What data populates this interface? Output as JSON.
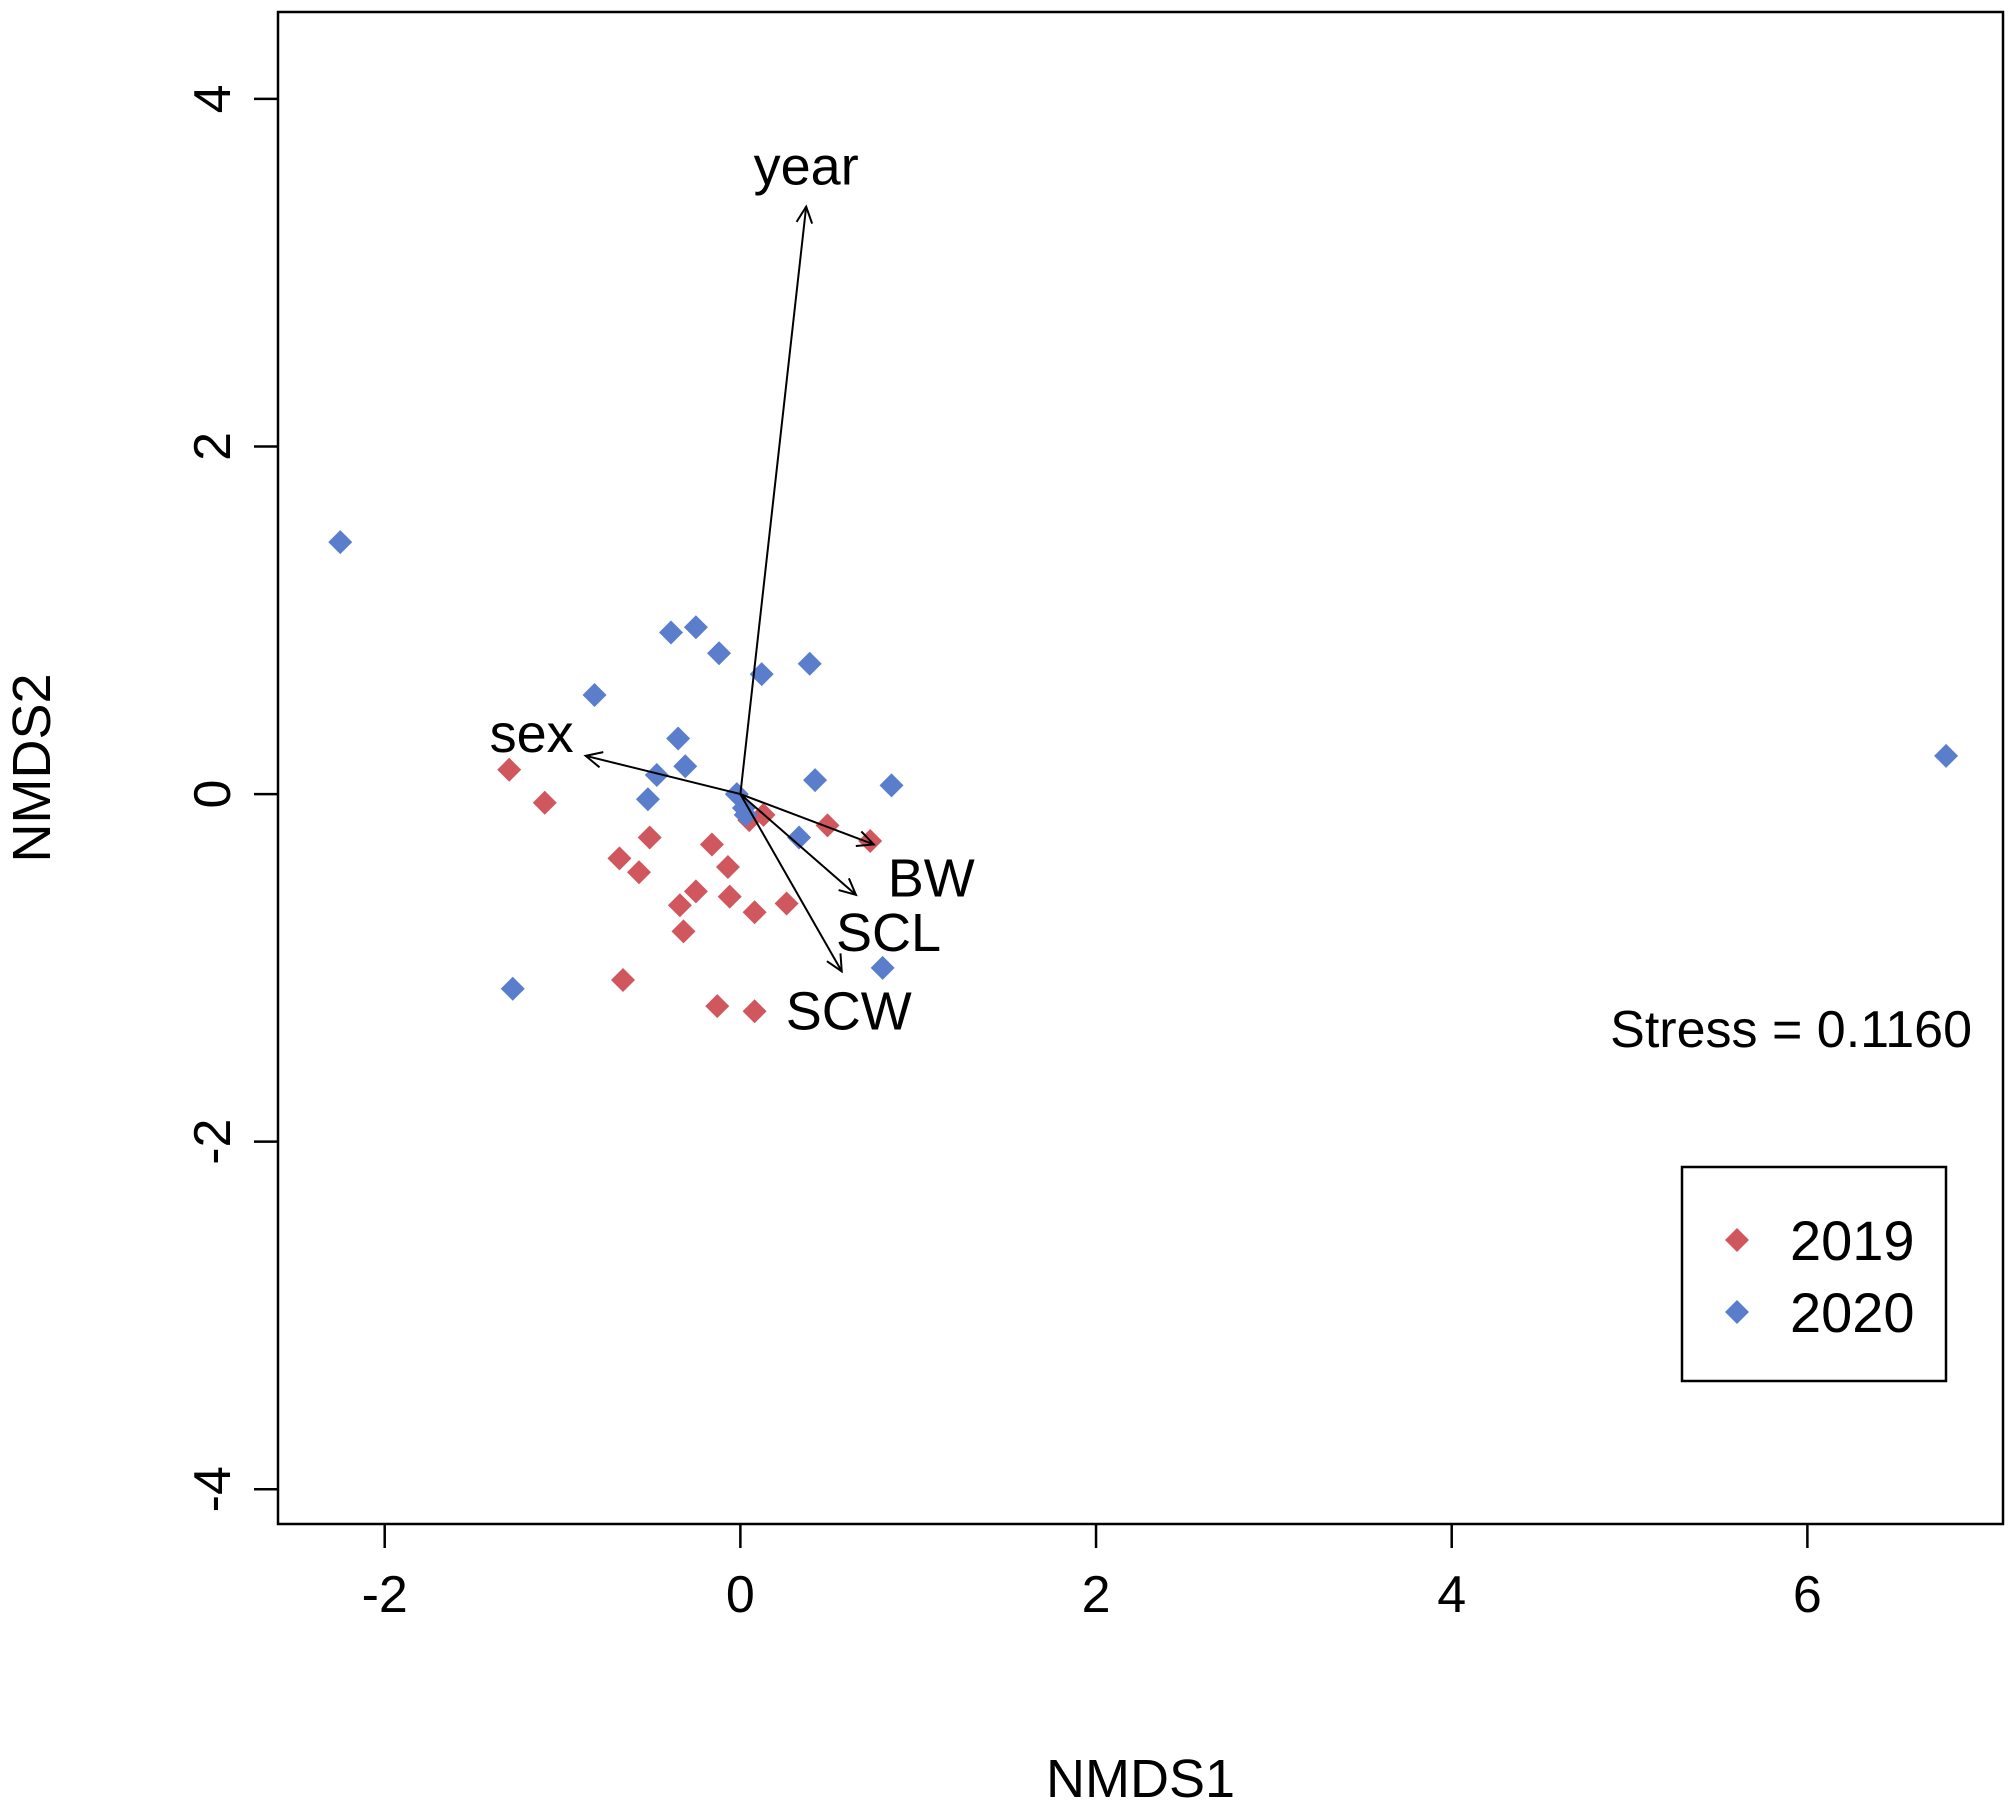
{
  "chart_data": {
    "type": "scatter",
    "xlabel": "NMDS1",
    "ylabel": "NMDS2",
    "xlim": [
      -2.6,
      7.1
    ],
    "ylim": [
      -4.2,
      4.5
    ],
    "x_ticks": [
      -2,
      0,
      2,
      4,
      6
    ],
    "y_ticks": [
      -4,
      -2,
      0,
      2,
      4
    ],
    "x_tick_labels": [
      "-2",
      "0",
      "2",
      "4",
      "6"
    ],
    "y_tick_labels": [
      "-4",
      "-2",
      "0",
      "2",
      "4"
    ],
    "series": [
      {
        "name": "2019",
        "color": "#d0575d",
        "marker": "diamond",
        "points": [
          [
            -1.3,
            0.14
          ],
          [
            -1.1,
            -0.05
          ],
          [
            -0.68,
            -0.37
          ],
          [
            -0.57,
            -0.45
          ],
          [
            -0.51,
            -0.25
          ],
          [
            -0.34,
            -0.64
          ],
          [
            -0.32,
            -0.79
          ],
          [
            -0.25,
            -0.56
          ],
          [
            -0.16,
            -0.29
          ],
          [
            -0.07,
            -0.42
          ],
          [
            -0.06,
            -0.59
          ],
          [
            0.08,
            -0.68
          ],
          [
            0.26,
            -0.63
          ],
          [
            -0.66,
            -1.07
          ],
          [
            -0.13,
            -1.22
          ],
          [
            0.08,
            -1.25
          ],
          [
            0.13,
            -0.12
          ],
          [
            0.05,
            -0.15
          ],
          [
            0.49,
            -0.18
          ],
          [
            0.73,
            -0.27
          ]
        ]
      },
      {
        "name": "2020",
        "color": "#5a7dcc",
        "marker": "diamond",
        "points": [
          [
            -2.25,
            1.45
          ],
          [
            6.78,
            0.22
          ],
          [
            -0.39,
            0.93
          ],
          [
            -0.25,
            0.96
          ],
          [
            -0.12,
            0.81
          ],
          [
            0.12,
            0.69
          ],
          [
            0.39,
            0.75
          ],
          [
            -0.82,
            0.57
          ],
          [
            -0.35,
            0.32
          ],
          [
            -0.31,
            0.16
          ],
          [
            -0.47,
            0.11
          ],
          [
            -0.52,
            -0.03
          ],
          [
            -0.02,
            0.0
          ],
          [
            0.02,
            -0.08
          ],
          [
            0.03,
            -0.12
          ],
          [
            0.42,
            0.08
          ],
          [
            0.85,
            0.05
          ],
          [
            0.33,
            -0.25
          ],
          [
            0.8,
            -1.0
          ],
          [
            -1.28,
            -1.12
          ]
        ]
      }
    ],
    "vectors": [
      {
        "name": "year",
        "x": 0.37,
        "y": 3.38
      },
      {
        "name": "sex",
        "x": -0.87,
        "y": 0.22
      },
      {
        "name": "BW",
        "x": 0.75,
        "y": -0.29
      },
      {
        "name": "SCL",
        "x": 0.65,
        "y": -0.58
      },
      {
        "name": "SCW",
        "x": 0.57,
        "y": -1.02
      }
    ],
    "stress_label": "Stress = 0.1160",
    "legend": {
      "position": "bottom-right",
      "entries": [
        "2019",
        "2020"
      ]
    }
  }
}
